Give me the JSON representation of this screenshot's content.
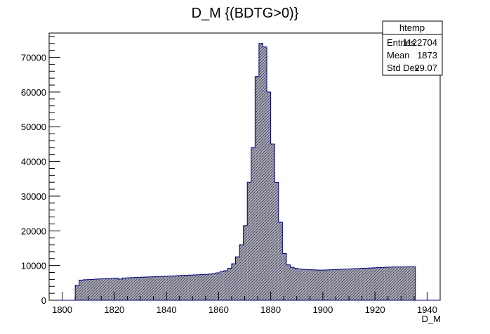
{
  "chart_data": {
    "type": "bar",
    "title": "D_M {(BDTG>0)}",
    "xlabel": "D_M",
    "ylabel": "",
    "xlim": [
      1795,
      1945
    ],
    "ylim": [
      0,
      77000
    ],
    "grid": false,
    "xticks": [
      1800,
      1820,
      1840,
      1860,
      1880,
      1900,
      1920,
      1940
    ],
    "yticks": [
      0,
      10000,
      20000,
      30000,
      40000,
      50000,
      60000,
      70000
    ],
    "bin_width": 1.5,
    "bin_start": 1805,
    "values": [
      4300,
      5800,
      5900,
      5950,
      6000,
      6100,
      6150,
      6200,
      6250,
      6300,
      6350,
      6100,
      6400,
      6450,
      6500,
      6550,
      6600,
      6650,
      6700,
      6750,
      6800,
      6850,
      6900,
      6950,
      7000,
      7050,
      7100,
      7150,
      7200,
      7250,
      7300,
      7350,
      7400,
      7450,
      7550,
      7700,
      7900,
      8200,
      8500,
      9200,
      10500,
      12500,
      16000,
      21500,
      34000,
      44000,
      64500,
      74000,
      73000,
      60000,
      45000,
      34000,
      22500,
      13500,
      10200,
      9500,
      9200,
      9000,
      8900,
      8850,
      8800,
      8750,
      8700,
      8700,
      8750,
      8800,
      8850,
      8900,
      8950,
      9000,
      9050,
      9100,
      9150,
      9200,
      9250,
      9300,
      9350,
      9400,
      9450,
      9500,
      9550,
      9600,
      9600,
      9600,
      9600,
      9650,
      9650
    ],
    "stats_box": {
      "name": "htemp",
      "rows": [
        {
          "label": "Entries",
          "value": "1122704"
        },
        {
          "label": "Mean",
          "value": "1873"
        },
        {
          "label": "Std Dev",
          "value": "29.07"
        }
      ]
    },
    "colors": {
      "fill": "#9a9ab0",
      "line": "#00007f",
      "hatch": "#3a3a48"
    }
  }
}
